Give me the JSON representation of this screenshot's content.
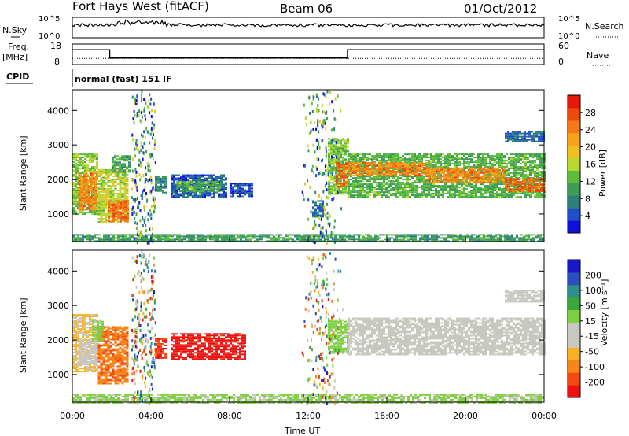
{
  "header": {
    "station": "Fort Hays West (fitACF)",
    "beam": "Beam 06",
    "date": "01/Oct/2012"
  },
  "top_panels": {
    "nsky_label": "N.Sky",
    "nsky_ticks": [
      "10^5",
      "10^0"
    ],
    "nsearch_label": "N.Search",
    "nsearch_ticks": [
      "10^5",
      "10^0"
    ],
    "freq_label": "Freq.",
    "freq_unit": "[MHz]",
    "freq_ticks": [
      "18",
      "8"
    ],
    "nave_label": "Nave",
    "nave_ticks": [
      "60",
      "0"
    ],
    "cpid_label": "CPID",
    "cpid_text": "normal (fast) 151 IF"
  },
  "colors": {
    "power": [
      "#1010dd",
      "#1f4fc8",
      "#2e7f7a",
      "#3c9d55",
      "#5cbc3c",
      "#b8d830",
      "#f0c020",
      "#f7a21a",
      "#f47a12",
      "#ee4a0c",
      "#e81808"
    ],
    "velocity": [
      "#ee1010",
      "#f24a12",
      "#f7861a",
      "#f9b225",
      "#c8c8c0",
      "#c8c8c0",
      "#7fd040",
      "#3aa83a",
      "#2f8f8f",
      "#2a50c0",
      "#1818c8"
    ]
  },
  "chart_data": [
    {
      "type": "heatmap",
      "name_id": "power-panel",
      "xlabel": "",
      "ylabel": "Slant Range [km]",
      "xlim": [
        0,
        24
      ],
      "ylim": [
        200,
        4600
      ],
      "y_ticks": [
        1000,
        2000,
        3000,
        4000
      ],
      "colorbar_label": "Power [dB]",
      "colorbar_range": [
        0,
        32
      ],
      "colorbar_ticks": [
        "28",
        "24",
        "20",
        "16",
        "12",
        "8",
        "4"
      ],
      "regions": [
        {
          "t0": 0.0,
          "t1": 1.3,
          "r0": 1000,
          "r1": 2750,
          "v": 14
        },
        {
          "t0": 0.3,
          "t1": 1.2,
          "r0": 1150,
          "r1": 2200,
          "v": 24
        },
        {
          "t0": 1.3,
          "t1": 2.8,
          "r0": 750,
          "r1": 2300,
          "v": 16
        },
        {
          "t0": 1.8,
          "t1": 2.8,
          "r0": 800,
          "r1": 1400,
          "v": 26
        },
        {
          "t0": 2.0,
          "t1": 2.9,
          "r0": 2200,
          "r1": 2700,
          "v": 10
        },
        {
          "t0": 4.2,
          "t1": 4.7,
          "r0": 1600,
          "r1": 2100,
          "v": 8
        },
        {
          "t0": 5.0,
          "t1": 7.8,
          "r0": 1500,
          "r1": 2150,
          "v": 5
        },
        {
          "t0": 5.3,
          "t1": 7.5,
          "r0": 1650,
          "r1": 1950,
          "v": 12
        },
        {
          "t0": 8.0,
          "t1": 9.2,
          "r0": 1500,
          "r1": 1900,
          "v": 4
        },
        {
          "t0": 12.2,
          "t1": 12.8,
          "r0": 900,
          "r1": 1400,
          "v": 6
        },
        {
          "t0": 13.0,
          "t1": 14.0,
          "r0": 1600,
          "r1": 3200,
          "v": 14
        },
        {
          "t0": 13.4,
          "t1": 14.0,
          "r0": 1800,
          "r1": 2500,
          "v": 26
        },
        {
          "t0": 14.0,
          "t1": 24.0,
          "r0": 1500,
          "r1": 2750,
          "v": 12
        },
        {
          "t0": 14.0,
          "t1": 18.0,
          "r0": 2100,
          "r1": 2500,
          "v": 24
        },
        {
          "t0": 18.0,
          "t1": 22.0,
          "r0": 1900,
          "r1": 2350,
          "v": 24
        },
        {
          "t0": 22.0,
          "t1": 24.0,
          "r0": 1650,
          "r1": 2050,
          "v": 26
        },
        {
          "t0": 22.0,
          "t1": 24.0,
          "r0": 3100,
          "r1": 3400,
          "v": 6
        },
        {
          "t0": 0.0,
          "t1": 24.0,
          "r0": 200,
          "r1": 420,
          "v": 10
        }
      ]
    },
    {
      "type": "heatmap",
      "name_id": "velocity-panel",
      "xlabel": "Time UT",
      "ylabel": "Slant Range [km]",
      "xlim": [
        0,
        24
      ],
      "ylim": [
        200,
        4600
      ],
      "y_ticks": [
        1000,
        2000,
        3000,
        4000
      ],
      "x_ticks": [
        "00:00",
        "04:00",
        "08:00",
        "12:00",
        "16:00",
        "20:00",
        "00:00"
      ],
      "colorbar_label": "Velocity [m s⁻¹]",
      "colorbar_range": [
        -250,
        250
      ],
      "colorbar_ticks": [
        "200",
        "100",
        "50",
        "15",
        "-15",
        "-50",
        "-100",
        "-200"
      ],
      "regions": [
        {
          "t0": 0.0,
          "t1": 1.3,
          "r0": 1100,
          "r1": 2750,
          "v": -70
        },
        {
          "t0": 0.3,
          "t1": 1.2,
          "r0": 1300,
          "r1": 2000,
          "v": -40
        },
        {
          "t0": 1.3,
          "t1": 2.8,
          "r0": 750,
          "r1": 2400,
          "v": -150
        },
        {
          "t0": 1.0,
          "t1": 1.6,
          "r0": 2000,
          "r1": 2600,
          "v": 40
        },
        {
          "t0": 4.2,
          "t1": 4.7,
          "r0": 1500,
          "r1": 2050,
          "v": -200
        },
        {
          "t0": 5.0,
          "t1": 8.8,
          "r0": 1450,
          "r1": 2200,
          "v": -220
        },
        {
          "t0": 13.0,
          "t1": 14.0,
          "r0": 1600,
          "r1": 2600,
          "v": 40
        },
        {
          "t0": 14.0,
          "t1": 24.0,
          "r0": 1600,
          "r1": 2650,
          "v": 0
        },
        {
          "t0": 22.0,
          "t1": 24.0,
          "r0": 3100,
          "r1": 3450,
          "v": 0
        },
        {
          "t0": 0.0,
          "t1": 24.0,
          "r0": 200,
          "r1": 430,
          "v": 30
        }
      ]
    }
  ],
  "series_top": {
    "nsky_level": 0.62,
    "freq_steps": [
      [
        0,
        1.9,
        0.72
      ],
      [
        1.9,
        14.0,
        0.32
      ],
      [
        14.0,
        24.0,
        0.72
      ]
    ],
    "nave_level": 0.3
  }
}
